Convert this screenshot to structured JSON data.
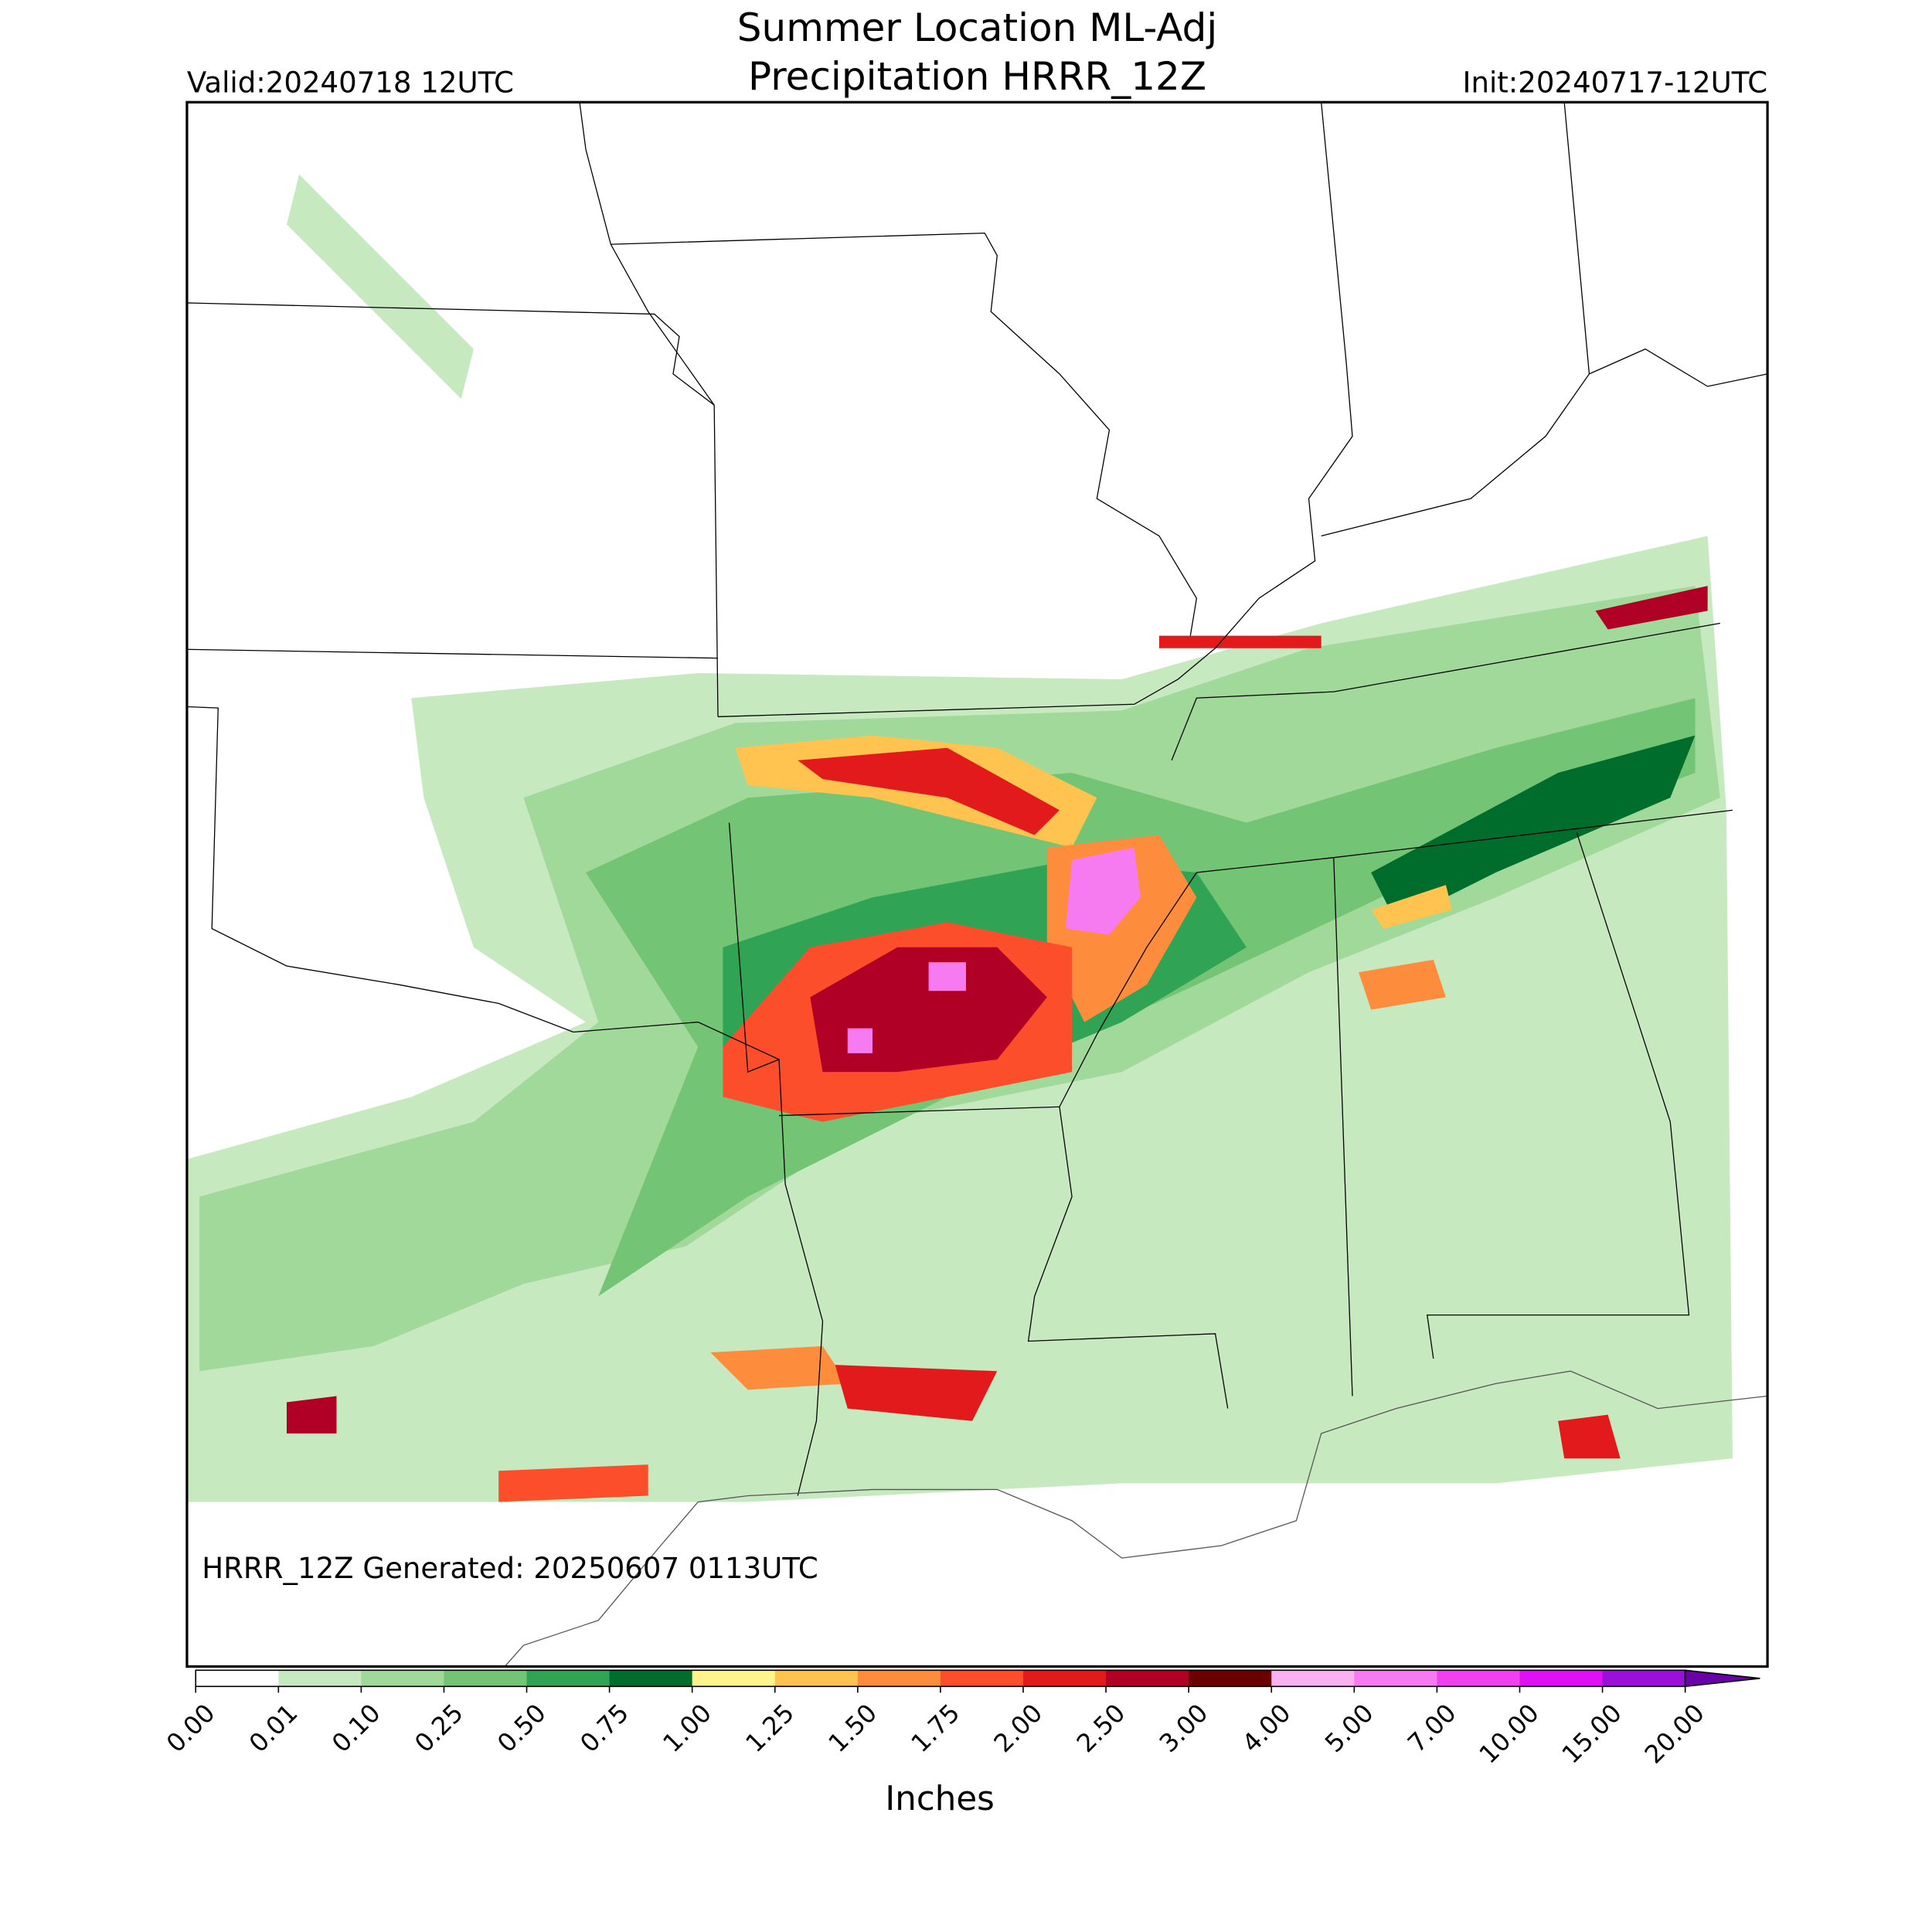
{
  "header": {
    "title_line1": "Summer Location ML-Adj",
    "title_line2": "Precipitation HRRR_12Z",
    "valid": "Valid:20240718 12UTC",
    "init": "Init:20240717-12UTC"
  },
  "map": {
    "footnote": "HRRR_12Z Generated: 20250607 0113UTC"
  },
  "colorbar": {
    "label": "Inches",
    "ticks": [
      "0.00",
      "0.01",
      "0.10",
      "0.25",
      "0.50",
      "0.75",
      "1.00",
      "1.25",
      "1.50",
      "1.75",
      "2.00",
      "2.50",
      "3.00",
      "4.00",
      "5.00",
      "7.00",
      "10.00",
      "15.00",
      "20.00"
    ],
    "colors": [
      "#ffffff",
      "#c7e9c0",
      "#a1d99b",
      "#74c476",
      "#31a354",
      "#006d2c",
      "#fff58c",
      "#fec44f",
      "#fd8d3c",
      "#fc4e2a",
      "#e31a1c",
      "#b10026",
      "#6b0000",
      "#f9b1f0",
      "#f77bf0",
      "#f040f0",
      "#e010f5",
      "#9a10d8"
    ],
    "extend_color": "#6a00a8"
  }
}
